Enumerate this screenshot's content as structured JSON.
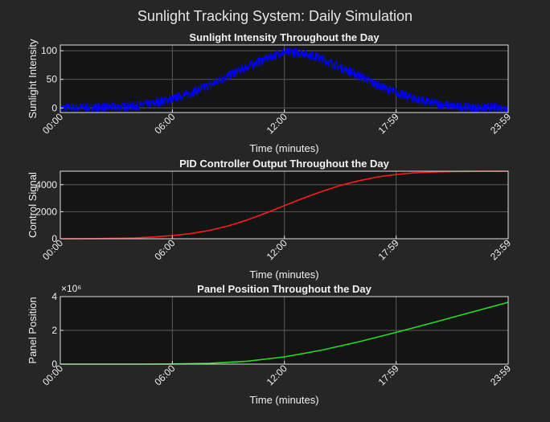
{
  "figure_title": "Sunlight Tracking System: Daily Simulation",
  "colors": {
    "background": "#262626",
    "axes_bg": "#141414",
    "grid": "#5a5a5a",
    "text": "#f0f0f0"
  },
  "chart_data": [
    {
      "type": "line",
      "title": "Sunlight Intensity Throughout the Day",
      "xlabel": "Time (minutes)",
      "ylabel": "Sunlight Intensity",
      "xlim": [
        0,
        1439
      ],
      "ylim": [
        -8,
        110
      ],
      "yticks": [
        0,
        50,
        100
      ],
      "ytick_labels": [
        "0",
        "50",
        "100"
      ],
      "xticks": [
        0,
        360,
        720,
        1079,
        1439
      ],
      "xtick_labels": [
        "00:00",
        "06:00",
        "12:00",
        "17:59",
        "23:59"
      ],
      "grid": true,
      "series": [
        {
          "color": "#0000ff",
          "noisy": true,
          "x": [
            0,
            120,
            240,
            300,
            360,
            420,
            480,
            540,
            600,
            660,
            720,
            780,
            840,
            900,
            960,
            1020,
            1080,
            1140,
            1200,
            1260,
            1320,
            1439
          ],
          "values": [
            0,
            1,
            3,
            8,
            16,
            26,
            40,
            56,
            72,
            86,
            98,
            96,
            86,
            71,
            56,
            40,
            27,
            16,
            8,
            3,
            1,
            0
          ]
        }
      ]
    },
    {
      "type": "line",
      "title": "PID Controller Output Throughout the Day",
      "xlabel": "Time (minutes)",
      "ylabel": "Control Signal",
      "xlim": [
        0,
        1439
      ],
      "ylim": [
        0,
        5000
      ],
      "yticks": [
        0,
        2000,
        4000
      ],
      "ytick_labels": [
        "0",
        "2000",
        "4000"
      ],
      "xticks": [
        0,
        360,
        720,
        1079,
        1439
      ],
      "xtick_labels": [
        "00:00",
        "06:00",
        "12:00",
        "17:59",
        "23:59"
      ],
      "grid": true,
      "series": [
        {
          "color": "#ff1a1a",
          "x": [
            0,
            120,
            240,
            300,
            360,
            420,
            480,
            540,
            600,
            660,
            720,
            780,
            840,
            900,
            960,
            1020,
            1080,
            1140,
            1200,
            1260,
            1320,
            1439
          ],
          "values": [
            0,
            10,
            60,
            130,
            230,
            380,
            620,
            950,
            1380,
            1900,
            2450,
            3000,
            3500,
            3950,
            4300,
            4580,
            4760,
            4880,
            4940,
            4975,
            4990,
            5000
          ]
        }
      ]
    },
    {
      "type": "line",
      "title": "Panel Position Throughout the Day",
      "xlabel": "Time (minutes)",
      "ylabel": "Panel Position",
      "xlim": [
        0,
        1439
      ],
      "ylim": [
        0,
        4
      ],
      "yticks": [
        0,
        2,
        4
      ],
      "ytick_labels": [
        "0",
        "2",
        "4"
      ],
      "y_multiplier": "×10⁶",
      "xticks": [
        0,
        360,
        720,
        1079,
        1439
      ],
      "xtick_labels": [
        "00:00",
        "06:00",
        "12:00",
        "17:59",
        "23:59"
      ],
      "grid": true,
      "series": [
        {
          "color": "#22dd22",
          "x": [
            0,
            240,
            360,
            480,
            600,
            720,
            840,
            960,
            1079,
            1200,
            1320,
            1439
          ],
          "values": [
            0,
            0.002,
            0.01,
            0.05,
            0.17,
            0.43,
            0.83,
            1.33,
            1.88,
            2.47,
            3.07,
            3.66
          ]
        }
      ]
    }
  ]
}
